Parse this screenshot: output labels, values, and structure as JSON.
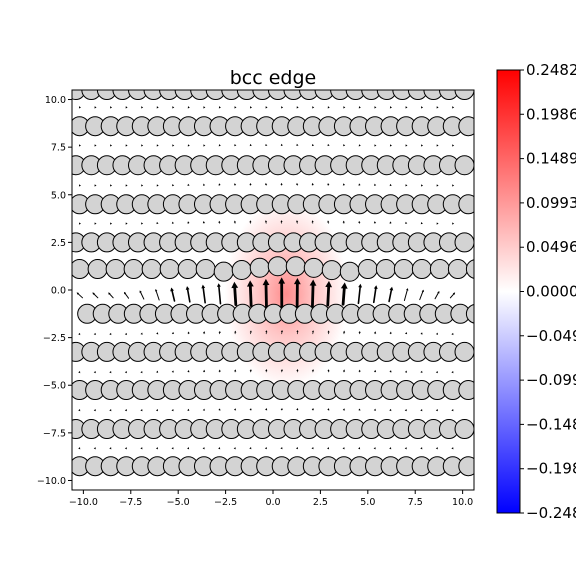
{
  "chart_data": {
    "type": "heatmap",
    "title": "bcc edge",
    "xlabel": "",
    "ylabel": "",
    "xlim": [
      -10.6,
      10.6
    ],
    "ylim": [
      -10.5,
      10.5
    ],
    "x_ticks": [
      -10.0,
      -7.5,
      -5.0,
      -2.5,
      0.0,
      2.5,
      5.0,
      7.5,
      10.0
    ],
    "y_ticks": [
      -10.0,
      -7.5,
      -5.0,
      -2.5,
      0.0,
      2.5,
      5.0,
      7.5,
      10.0
    ],
    "x_tick_labels": [
      "−10.0",
      "−7.5",
      "−5.0",
      "−2.5",
      "0.0",
      "2.5",
      "5.0",
      "7.5",
      "10.0"
    ],
    "y_tick_labels": [
      "−10.0",
      "−7.5",
      "−5.0",
      "−2.5",
      "0.0",
      "2.5",
      "5.0",
      "7.5",
      "10.0"
    ],
    "colormap": "bwr",
    "colorbar": {
      "min": -0.2482,
      "max": 0.2482,
      "colors": {
        "low": "#0000ff",
        "mid": "#ffffff",
        "high": "#ff0000"
      },
      "ticks": [
        0.2482,
        0.1986,
        0.1489,
        0.0993,
        0.0496,
        0.0,
        -0.0496,
        -0.0993,
        -0.1489,
        -0.1986,
        -0.2482
      ],
      "tick_labels": [
        "0.2482",
        "0.1986",
        "0.1489",
        "0.0993",
        "0.0496",
        "0.0000",
        "−0.0496",
        "−0.0993",
        "−0.1489",
        "−0.1986",
        "−0.2482"
      ]
    },
    "atom_rows": [
      {
        "y": 10.5,
        "x_start": -10.4,
        "spacing": 0.82
      },
      {
        "y": 8.6,
        "x_start": -10.2,
        "spacing": 0.82
      },
      {
        "y": 6.55,
        "x_start": -10.4,
        "spacing": 0.82
      },
      {
        "y": 4.5,
        "x_start": -10.2,
        "spacing": 0.82
      },
      {
        "y": 2.5,
        "x_start": -10.4,
        "spacing": 0.82
      },
      {
        "y": 1.1,
        "x_start": -10.2,
        "spacing": 0.95
      },
      {
        "y": -1.25,
        "x_start": -9.8,
        "spacing": 0.82
      },
      {
        "y": -3.25,
        "x_start": -10.4,
        "spacing": 0.82
      },
      {
        "y": -5.25,
        "x_start": -10.2,
        "spacing": 0.82
      },
      {
        "y": -7.3,
        "x_start": -10.4,
        "spacing": 0.82
      },
      {
        "y": -9.25,
        "x_start": -10.2,
        "spacing": 0.82
      }
    ],
    "atom_fill": "#d3d3d3",
    "density_peak": {
      "x": 0.7,
      "y": -0.2,
      "value": 0.08
    }
  }
}
